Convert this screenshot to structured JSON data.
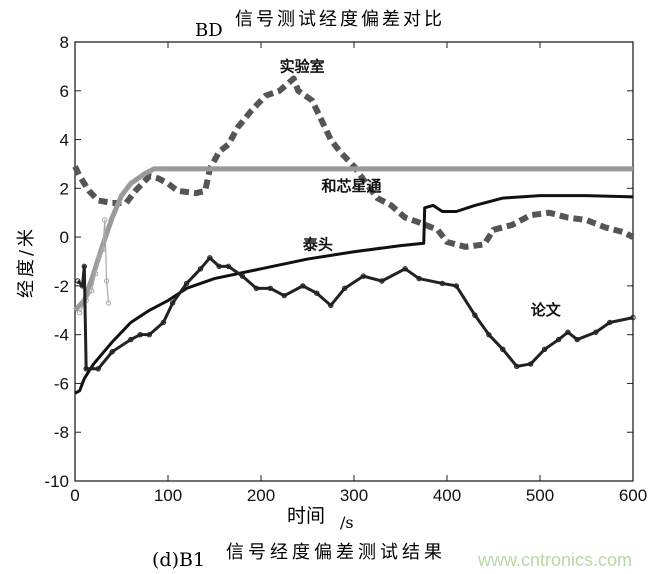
{
  "chart_data": {
    "type": "line",
    "title_prefix": "BD",
    "title": "信号测试经度偏差对比",
    "xlabel_main": "时间",
    "xlabel_unit": "/s",
    "ylabel": "经度/米",
    "caption_prefix": "(d)B1",
    "caption": "信号经度偏差测试结果",
    "xlim": [
      0,
      600
    ],
    "ylim": [
      -10,
      8
    ],
    "xticks": [
      0,
      100,
      200,
      300,
      400,
      500,
      600
    ],
    "yticks": [
      -10,
      -8,
      -6,
      -4,
      -2,
      0,
      2,
      4,
      6,
      8
    ],
    "grid": false,
    "series": [
      {
        "name": "实验室",
        "style": "dashed-thick",
        "color": "#555555",
        "x": [
          0,
          5,
          10,
          15,
          25,
          40,
          55,
          65,
          80,
          90,
          100,
          110,
          130,
          140,
          145,
          155,
          165,
          175,
          190,
          205,
          220,
          235,
          240,
          255,
          265,
          275,
          285,
          300,
          315,
          325,
          340,
          355,
          370,
          390,
          400,
          420,
          440,
          450,
          470,
          490,
          510,
          530,
          550,
          570,
          590,
          600
        ],
        "y": [
          2.9,
          2.5,
          2.2,
          1.9,
          1.5,
          1.4,
          1.4,
          1.9,
          2.5,
          2.4,
          2.2,
          1.9,
          1.8,
          1.9,
          2.8,
          3.5,
          3.8,
          4.5,
          5.2,
          5.8,
          6.0,
          6.5,
          6.0,
          5.6,
          4.8,
          4.0,
          3.5,
          2.9,
          2.1,
          1.6,
          1.3,
          0.8,
          0.6,
          0.3,
          -0.2,
          -0.4,
          -0.3,
          0.3,
          0.5,
          0.9,
          1.0,
          0.8,
          0.7,
          0.4,
          0.2,
          0.0
        ]
      },
      {
        "name": "和芯星通",
        "style": "solid-thick",
        "color": "#9a9a9a",
        "x": [
          0,
          10,
          20,
          30,
          40,
          50,
          60,
          75,
          85,
          600
        ],
        "y": [
          -3.0,
          -2.6,
          -1.5,
          -0.3,
          0.8,
          1.7,
          2.2,
          2.6,
          2.8,
          2.8
        ]
      },
      {
        "style": "thin-circles",
        "color": "#aaaaaa",
        "x": [
          5,
          12,
          18,
          22,
          26,
          30,
          32,
          34,
          36
        ],
        "y": [
          -3.1,
          -2.6,
          -2.2,
          -1.5,
          -0.8,
          -0.5,
          0.7,
          -1.8,
          -2.7
        ]
      },
      {
        "name": "泰头",
        "style": "solid",
        "color": "#111111",
        "x": [
          0,
          5,
          10,
          20,
          40,
          60,
          80,
          100,
          120,
          150,
          200,
          250,
          300,
          350,
          375,
          376,
          385,
          395,
          410,
          430,
          460,
          500,
          550,
          600
        ],
        "y": [
          -6.4,
          -6.3,
          -5.8,
          -5.2,
          -4.3,
          -3.5,
          -3.0,
          -2.6,
          -2.1,
          -1.7,
          -1.3,
          -0.9,
          -0.6,
          -0.35,
          -0.25,
          1.2,
          1.3,
          1.05,
          1.05,
          1.3,
          1.6,
          1.7,
          1.7,
          1.65
        ]
      },
      {
        "name": "论文",
        "style": "solid-markers",
        "color": "#222222",
        "x": [
          3,
          8,
          10,
          12,
          25,
          40,
          60,
          70,
          80,
          95,
          105,
          120,
          135,
          145,
          155,
          165,
          180,
          195,
          210,
          225,
          245,
          260,
          275,
          290,
          310,
          330,
          355,
          370,
          395,
          410,
          430,
          445,
          460,
          475,
          490,
          505,
          520,
          530,
          540,
          560,
          575,
          600
        ],
        "y": [
          -1.8,
          -2.0,
          -1.2,
          -5.4,
          -5.4,
          -4.7,
          -4.2,
          -4.0,
          -4.0,
          -3.5,
          -2.7,
          -1.9,
          -1.3,
          -0.85,
          -1.2,
          -1.2,
          -1.6,
          -2.1,
          -2.1,
          -2.4,
          -2.0,
          -2.3,
          -2.8,
          -2.1,
          -1.6,
          -1.8,
          -1.3,
          -1.7,
          -1.9,
          -2.0,
          -3.2,
          -4.0,
          -4.6,
          -5.3,
          -5.2,
          -4.6,
          -4.2,
          -3.9,
          -4.2,
          -3.9,
          -3.5,
          -3.3
        ]
      }
    ],
    "annotations": [
      {
        "text": "实验室",
        "x": 220,
        "y": 6.8
      },
      {
        "text": "和芯星通",
        "x": 265,
        "y": 1.9
      },
      {
        "text": "泰头",
        "x": 245,
        "y": -0.5
      },
      {
        "text": "论文",
        "x": 490,
        "y": -3.2
      }
    ]
  },
  "watermark": "www.cntronics.com",
  "colors": {
    "watermark": "#b8d8a8",
    "axis": "#222222"
  }
}
